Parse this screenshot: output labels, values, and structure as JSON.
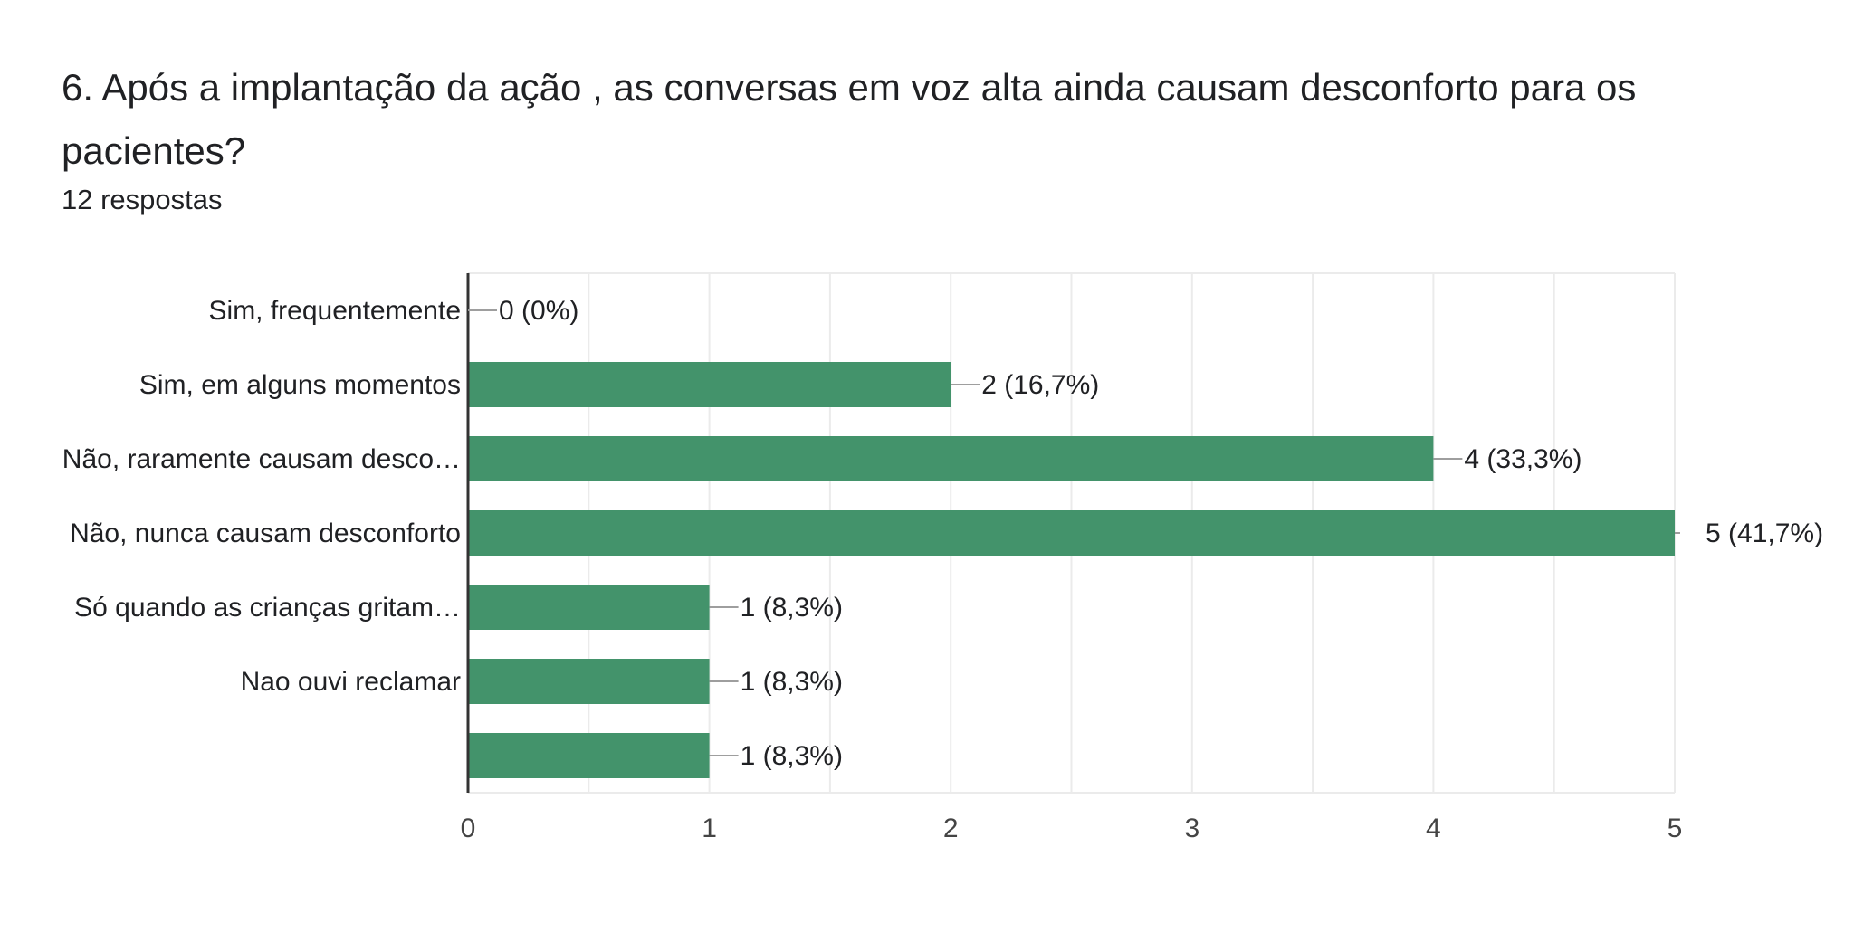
{
  "question": {
    "title": "6.  Após a implantação da ação , as conversas em voz alta ainda causam desconforto para os pacientes?",
    "responses": "12 respostas"
  },
  "colors": {
    "bar": "#43936b",
    "grid": "#ebebeb",
    "axis": "#333333",
    "leader": "#9e9e9e"
  },
  "chart_data": {
    "type": "bar",
    "orientation": "horizontal",
    "categories": [
      "Sim, frequentemente",
      "Sim, em alguns momentos",
      "Não, raramente causam desco…",
      "Não, nunca causam desconforto",
      "Só quando as crianças gritam…",
      "Nao ouvi reclamar",
      ""
    ],
    "values": [
      0,
      2,
      4,
      5,
      1,
      1,
      1
    ],
    "labels": [
      "0 (0%)",
      "2 (16,7%)",
      "4 (33,3%)",
      "5 (41,7%)",
      "1 (8,3%)",
      "1 (8,3%)",
      "1 (8,3%)"
    ],
    "xlim": [
      0,
      5
    ],
    "xticks": [
      "0",
      "1",
      "2",
      "3",
      "4",
      "5"
    ],
    "grid": true
  }
}
